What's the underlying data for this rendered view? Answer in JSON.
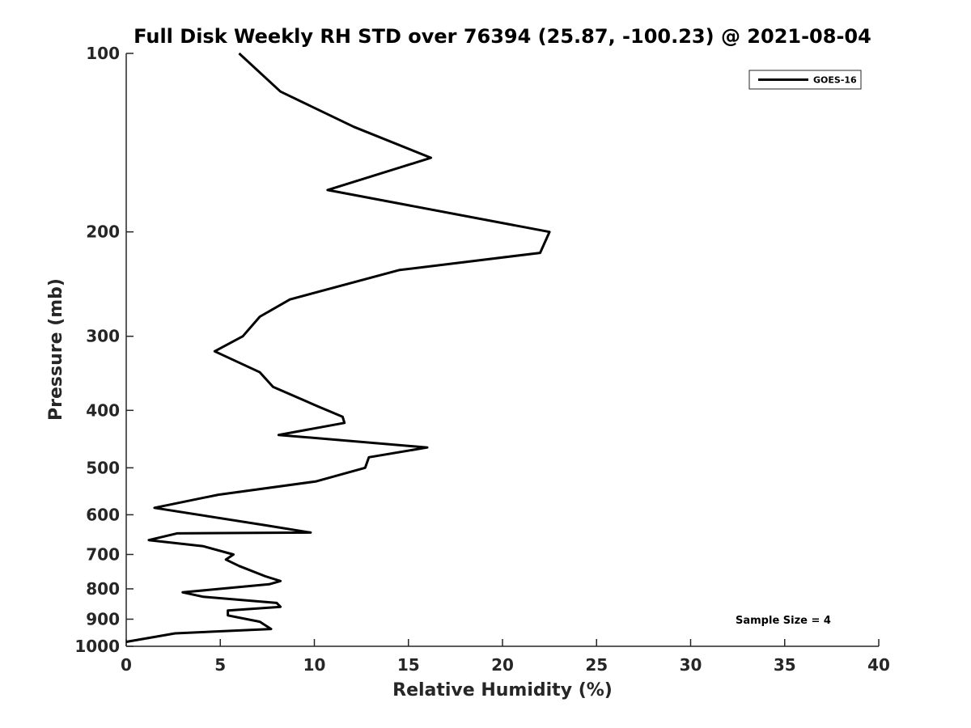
{
  "chart_data": {
    "type": "line",
    "title": "Full Disk Weekly RH STD over 76394 (25.87, -100.23) @ 2021-08-04",
    "xlabel": "Relative Humidity (%)",
    "ylabel": "Pressure (mb)",
    "xlim": [
      0,
      40
    ],
    "ylim": [
      100,
      1000
    ],
    "y_scale": "log",
    "y_reversed": true,
    "grid": false,
    "legend_position": "top-right",
    "x_ticks": [
      "0",
      "5",
      "10",
      "15",
      "20",
      "25",
      "30",
      "35",
      "40"
    ],
    "y_ticks": [
      "100",
      "200",
      "300",
      "400",
      "500",
      "600",
      "700",
      "800",
      "900",
      "1000"
    ],
    "series": [
      {
        "name": "GOES-16",
        "color": "#000000",
        "x": [
          6.0,
          8.2,
          12.1,
          16.2,
          10.7,
          22.5,
          22.0,
          14.5,
          8.7,
          7.1,
          6.2,
          4.7,
          7.1,
          7.8,
          10.2,
          11.5,
          11.6,
          8.1,
          16.0,
          12.9,
          12.7,
          10.1,
          4.9,
          1.5,
          7.4,
          9.8,
          2.7,
          1.2,
          4.1,
          5.7,
          5.3,
          6.0,
          7.4,
          8.2,
          7.6,
          3.0,
          4.1,
          8.0,
          8.2,
          5.4,
          5.4,
          7.1,
          7.7,
          2.6,
          0.0
        ],
        "y": [
          100,
          116,
          133,
          150,
          170,
          200,
          217,
          232,
          260,
          278,
          300,
          318,
          345,
          365,
          394,
          410,
          420,
          440,
          462,
          480,
          500,
          527,
          555,
          584,
          625,
          643,
          645,
          662,
          678,
          700,
          714,
          732,
          762,
          776,
          786,
          811,
          825,
          845,
          858,
          870,
          887,
          909,
          935,
          951,
          983
        ]
      }
    ],
    "annotations": [
      "Sample Size = 4"
    ]
  }
}
